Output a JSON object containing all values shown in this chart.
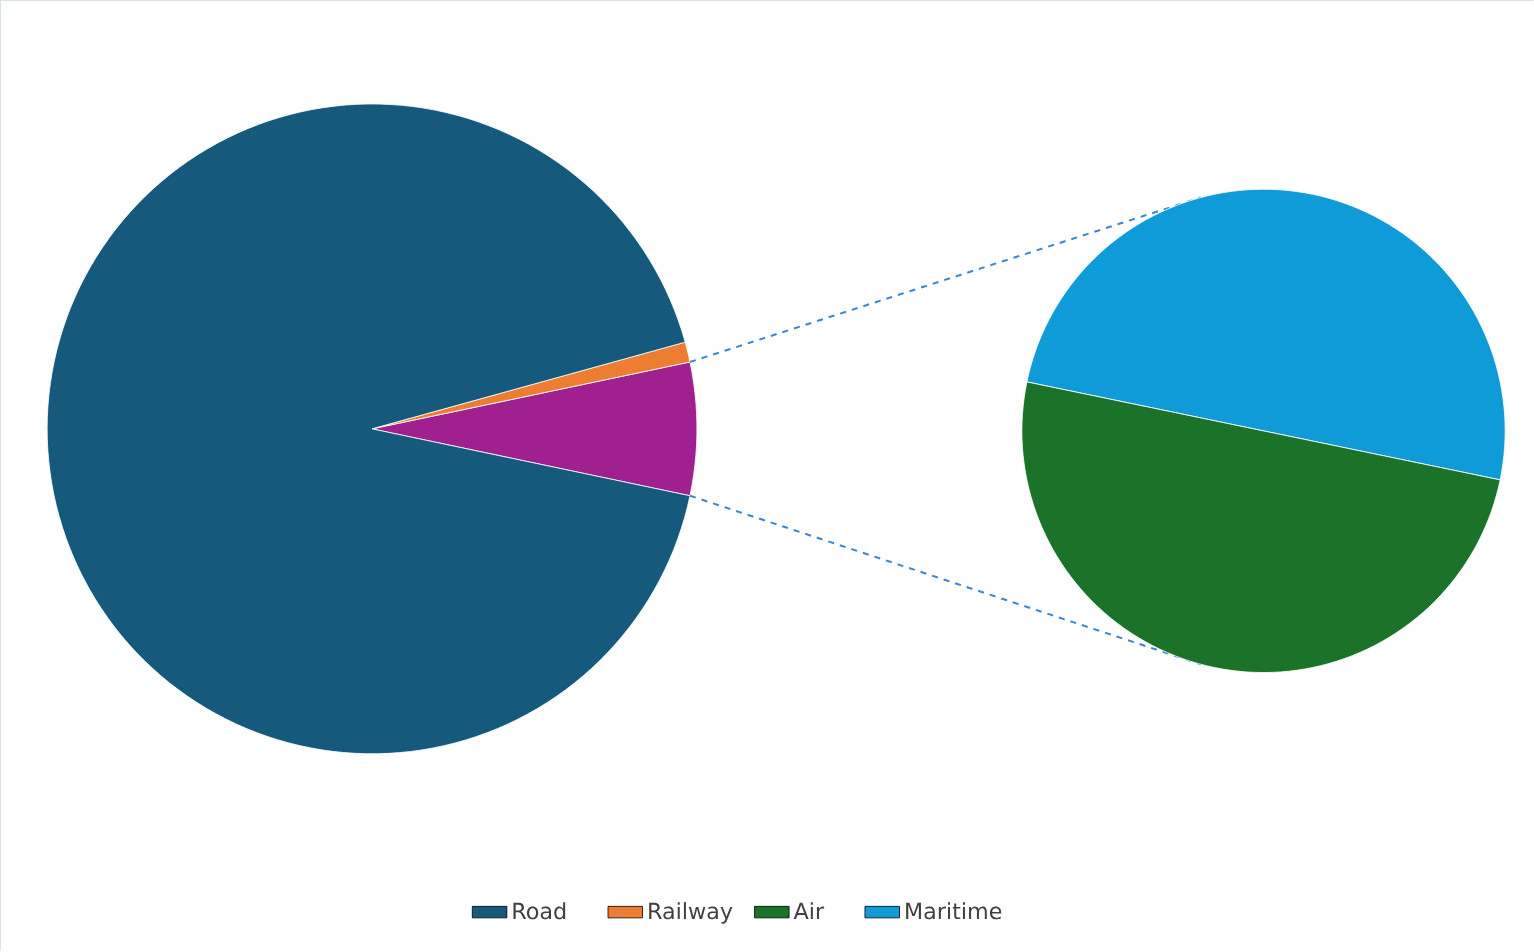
{
  "chart_data": [
    {
      "type": "pie",
      "categories": [
        "Road",
        "Railway",
        null
      ],
      "values": [
        92.4,
        1.0,
        6.6
      ],
      "colors": [
        "#15597c",
        "#ed7d31",
        "#a0208f"
      ],
      "legend": "bottom"
    },
    {
      "type": "pie",
      "categories": [
        "Air",
        "Maritime"
      ],
      "values": [
        50,
        50
      ],
      "colors": [
        "#1a7328",
        "#0f9bd8"
      ],
      "legend": "bottom"
    }
  ]
}
